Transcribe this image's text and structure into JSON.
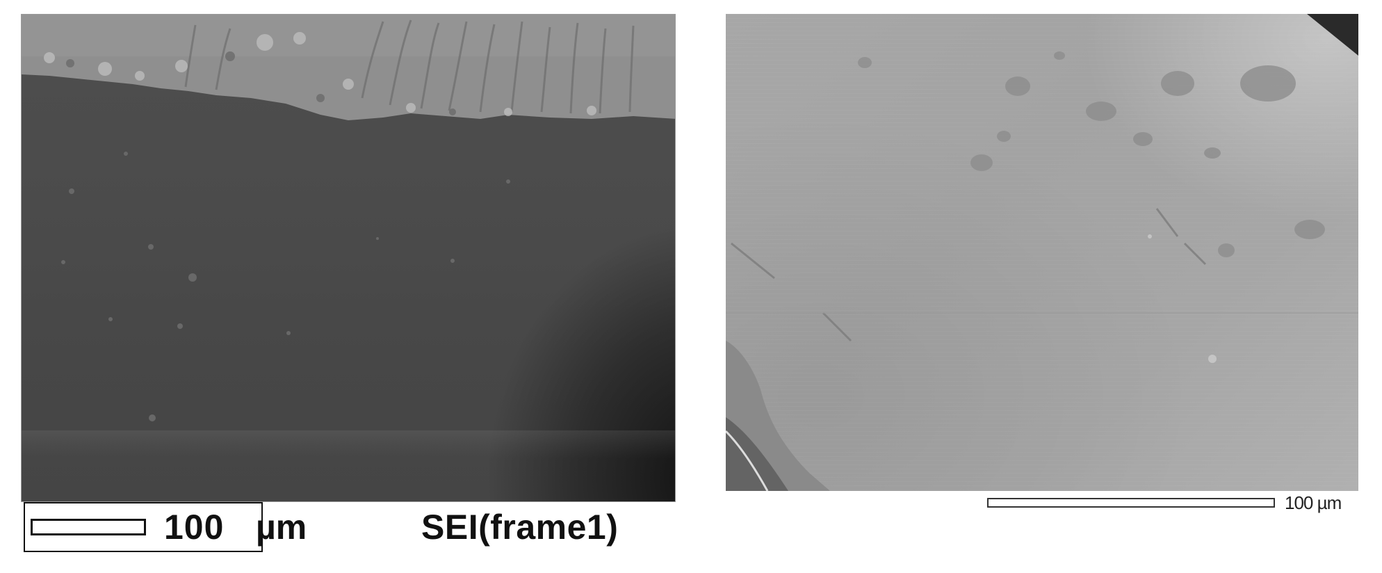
{
  "left_image": {
    "scale_number": "100",
    "scale_unit": "µm",
    "mode_label": "SEI(frame1)"
  },
  "right_image": {
    "scale_label": "100 µm"
  }
}
